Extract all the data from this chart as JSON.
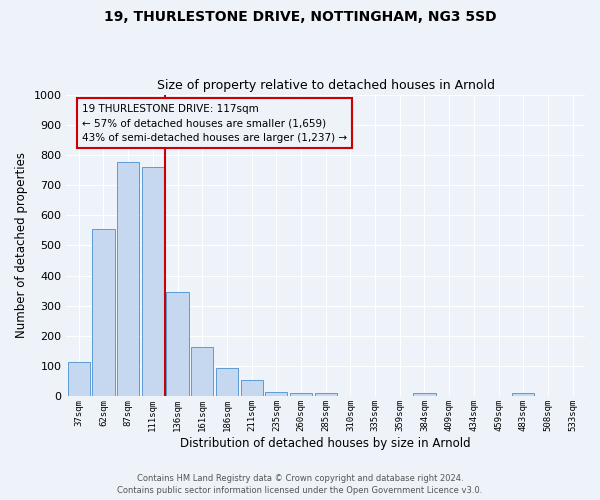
{
  "title": "19, THURLESTONE DRIVE, NOTTINGHAM, NG3 5SD",
  "subtitle": "Size of property relative to detached houses in Arnold",
  "xlabel": "Distribution of detached houses by size in Arnold",
  "ylabel": "Number of detached properties",
  "bin_labels": [
    "37sqm",
    "62sqm",
    "87sqm",
    "111sqm",
    "136sqm",
    "161sqm",
    "186sqm",
    "211sqm",
    "235sqm",
    "260sqm",
    "285sqm",
    "310sqm",
    "335sqm",
    "359sqm",
    "384sqm",
    "409sqm",
    "434sqm",
    "459sqm",
    "483sqm",
    "508sqm",
    "533sqm"
  ],
  "bin_values": [
    115,
    555,
    775,
    760,
    345,
    165,
    95,
    55,
    15,
    10,
    10,
    0,
    0,
    0,
    10,
    0,
    0,
    0,
    10,
    0,
    0
  ],
  "bar_color": "#c5d8f0",
  "bar_edge_color": "#5b9bd5",
  "property_line_color": "#cc0000",
  "annotation_title": "19 THURLESTONE DRIVE: 117sqm",
  "annotation_line1": "← 57% of detached houses are smaller (1,659)",
  "annotation_line2": "43% of semi-detached houses are larger (1,237) →",
  "annotation_box_color": "#cc0000",
  "ylim": [
    0,
    1000
  ],
  "yticks": [
    0,
    100,
    200,
    300,
    400,
    500,
    600,
    700,
    800,
    900,
    1000
  ],
  "footer_line1": "Contains HM Land Registry data © Crown copyright and database right 2024.",
  "footer_line2": "Contains public sector information licensed under the Open Government Licence v3.0.",
  "bg_color": "#eef2f9",
  "grid_color": "#ffffff",
  "title_fontsize": 10,
  "subtitle_fontsize": 9
}
